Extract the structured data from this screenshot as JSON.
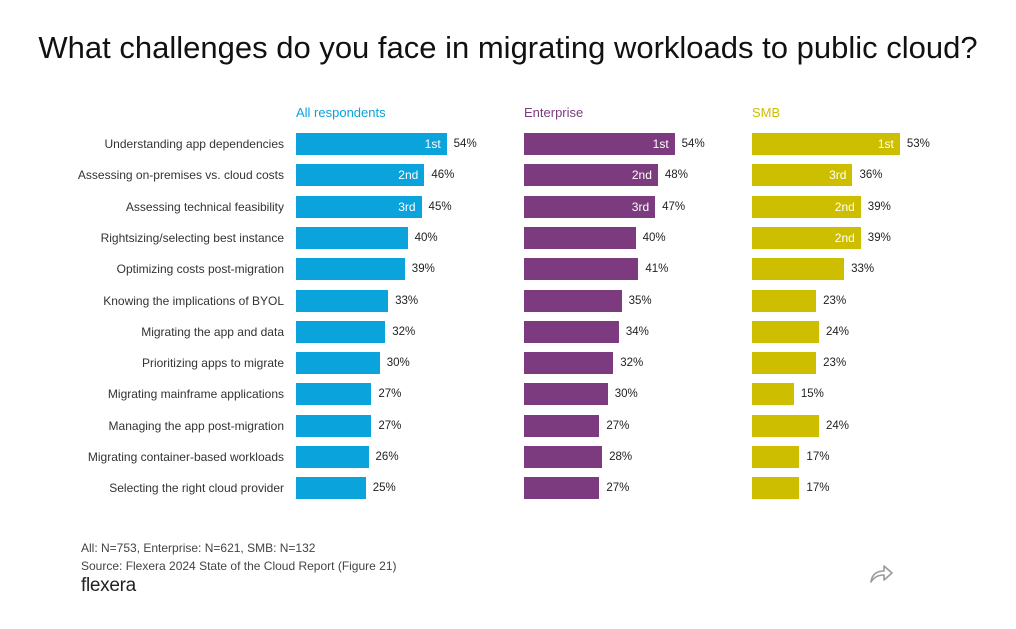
{
  "title": "What challenges do you face in migrating workloads to public cloud?",
  "colors": {
    "all": "#0aa3dc",
    "enterprise": "#7b3b7e",
    "smb": "#cdbf00"
  },
  "chart_data": {
    "type": "bar",
    "orientation": "horizontal",
    "categories": [
      "Understanding app dependencies",
      "Assessing on-premises vs. cloud costs",
      "Assessing technical feasibility",
      "Rightsizing/selecting best instance",
      "Optimizing costs post-migration",
      "Knowing the implications of BYOL",
      "Migrating the app and data",
      "Prioritizing apps to migrate",
      "Migrating mainframe applications",
      "Managing the app post-migration",
      "Migrating container-based workloads",
      "Selecting the right cloud provider"
    ],
    "series": [
      {
        "name": "All respondents",
        "color": "#0aa3dc",
        "values": [
          54,
          46,
          45,
          40,
          39,
          33,
          32,
          30,
          27,
          27,
          26,
          25
        ],
        "value_labels": [
          "54%",
          "46%",
          "45%",
          "40%",
          "39%",
          "33%",
          "32%",
          "30%",
          "27%",
          "27%",
          "26%",
          "25%"
        ],
        "ranks": [
          "1st",
          "2nd",
          "3rd",
          "",
          "",
          "",
          "",
          "",
          "",
          "",
          "",
          ""
        ]
      },
      {
        "name": "Enterprise",
        "color": "#7b3b7e",
        "values": [
          54,
          48,
          47,
          40,
          41,
          35,
          34,
          32,
          30,
          27,
          28,
          27
        ],
        "value_labels": [
          "54%",
          "48%",
          "47%",
          "40%",
          "41%",
          "35%",
          "34%",
          "32%",
          "30%",
          "27%",
          "28%",
          "27%"
        ],
        "ranks": [
          "1st",
          "2nd",
          "3rd",
          "",
          "",
          "",
          "",
          "",
          "",
          "",
          "",
          ""
        ]
      },
      {
        "name": "SMB",
        "color": "#cdbf00",
        "values": [
          53,
          36,
          39,
          39,
          33,
          23,
          24,
          23,
          15,
          24,
          17,
          17
        ],
        "value_labels": [
          "53%",
          "36%",
          "39%",
          "39%",
          "33%",
          "23%",
          "24%",
          "23%",
          "15%",
          "24%",
          "17%",
          "17%"
        ],
        "ranks": [
          "1st",
          "3rd",
          "2nd",
          "2nd",
          "",
          "",
          "",
          "",
          "",
          "",
          "",
          ""
        ]
      }
    ],
    "xlim": [
      0,
      100
    ],
    "grid": false,
    "legend": "none"
  },
  "footer": {
    "sample_note": "All: N=753, Enterprise: N=621, SMB: N=132",
    "source": "Source: Flexera 2024 State of the Cloud Report (Figure 21)",
    "logo_text": "flexera"
  },
  "icons": {
    "share": "share-arrow-icon"
  }
}
